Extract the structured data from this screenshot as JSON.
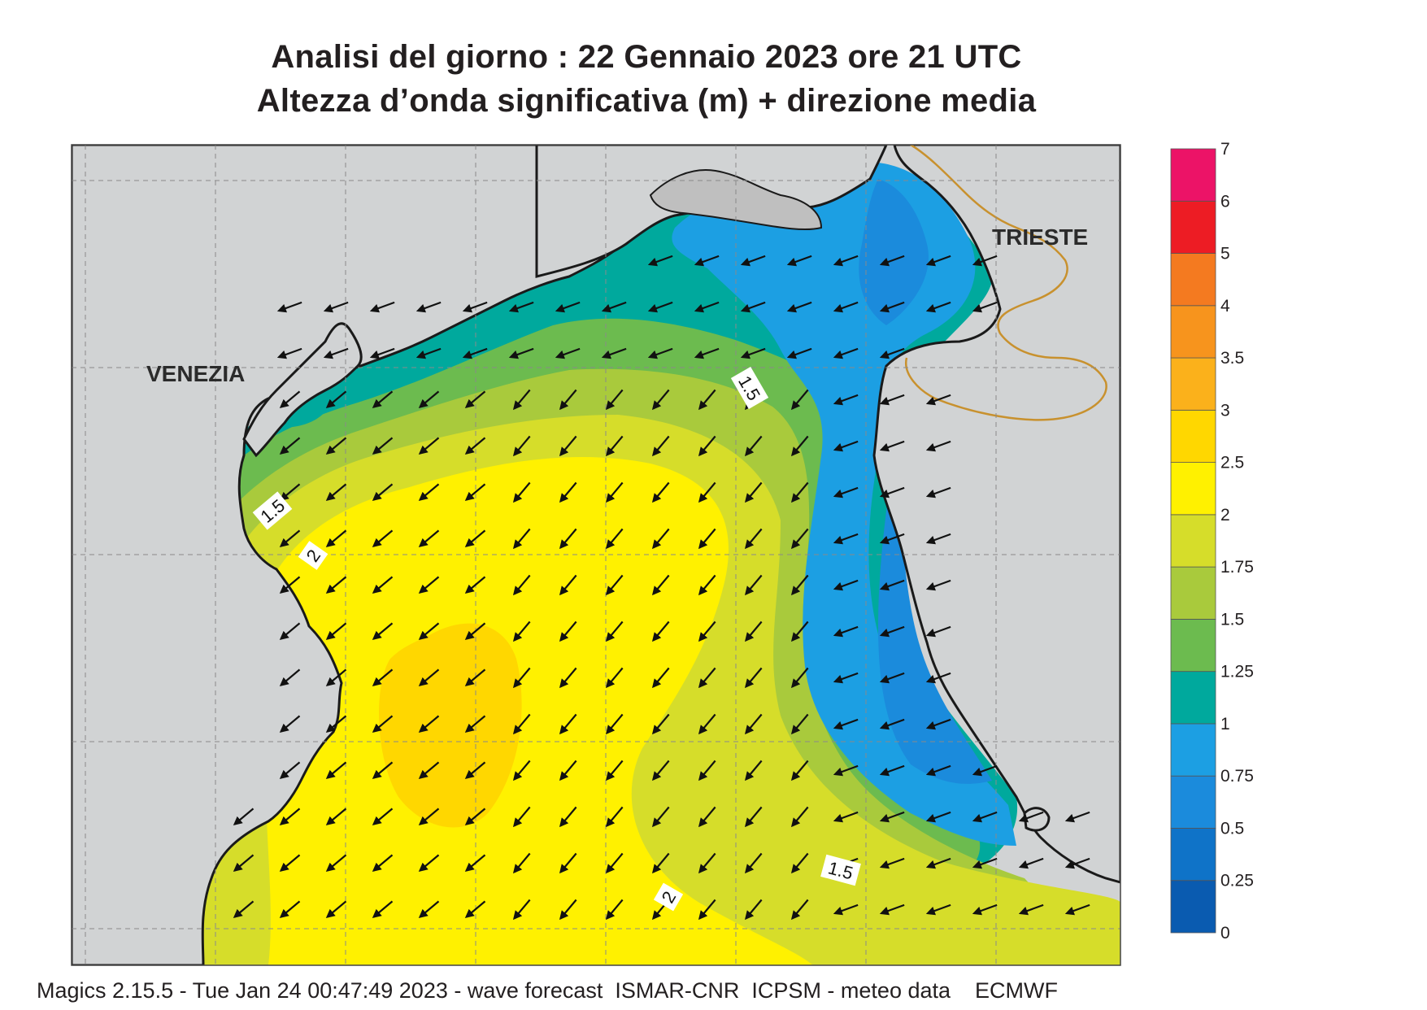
{
  "title_line1": "Analisi del giorno :  22  Gennaio  2023   ore 21 UTC",
  "title_line2": "Altezza d’onda significativa (m) + direzione media",
  "footer": "Magics 2.15.5 - Tue Jan 24 00:47:49 2023 - wave forecast  ISMAR-CNR  ICPSM - meteo data    ECMWF",
  "places": {
    "venezia": "VENEZIA",
    "trieste": "TRIESTE"
  },
  "contour_labels": {
    "c15_west": "1.5",
    "c2_west": "2",
    "c15_north": "1.5",
    "c15_south": "1.5",
    "c2_south": "2"
  },
  "colorbar": {
    "tick_labels": [
      "0",
      "0.25",
      "0.5",
      "0.75",
      "1",
      "1.25",
      "1.5",
      "1.75",
      "2",
      "2.5",
      "3",
      "3.5",
      "4",
      "5",
      "6",
      "7"
    ],
    "colors": [
      "#0a5bb0",
      "#0f73c8",
      "#1b8bdc",
      "#1c9fe3",
      "#00a99d",
      "#6cbb4f",
      "#a9ca3c",
      "#d6dd2a",
      "#fff100",
      "#ffd700",
      "#fbb11b",
      "#f7941d",
      "#f47a20",
      "#ed1c24",
      "#ec1367"
    ]
  },
  "palette": {
    "land": "#d1d3d4",
    "border": "#c8912e",
    "coast": "#1a1a1a",
    "grid": "#8a8a8a"
  },
  "arrow_direction": "towards south-west"
}
